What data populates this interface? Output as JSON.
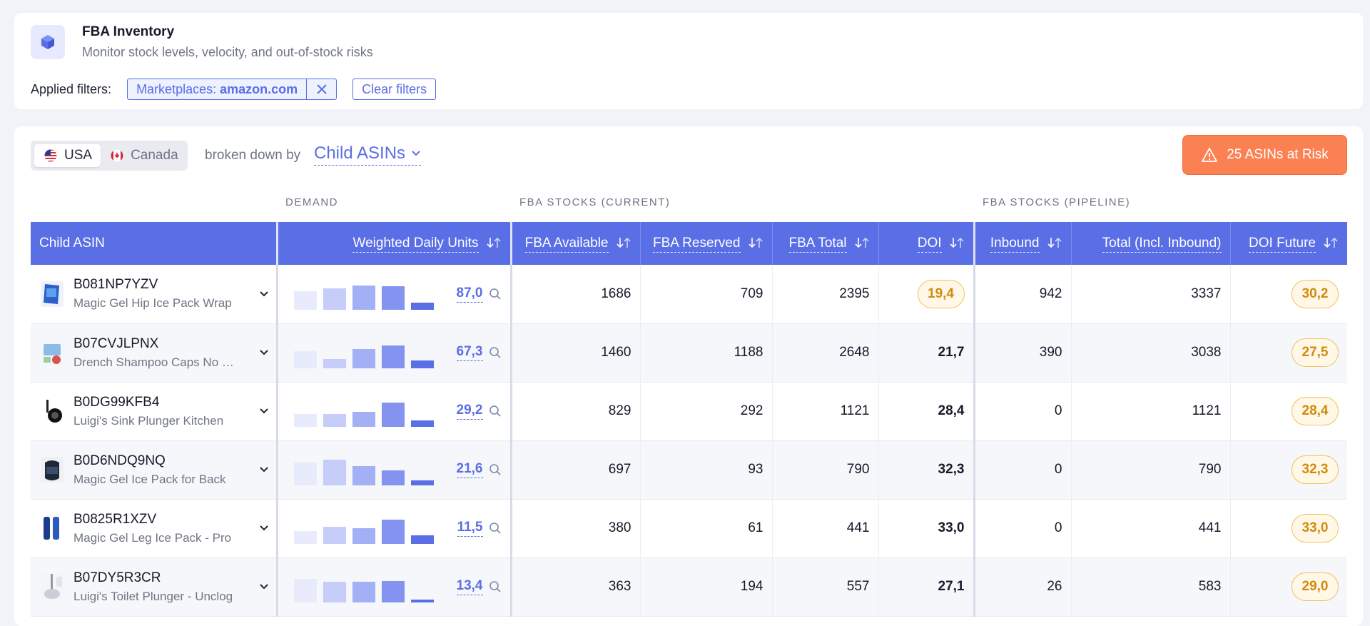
{
  "header": {
    "title": "FBA Inventory",
    "subtitle": "Monitor stock levels, velocity, and out-of-stock risks",
    "filters_label": "Applied filters:",
    "filter_chip": {
      "key": "Marketplaces:",
      "value": "amazon.com"
    },
    "clear_label": "Clear filters"
  },
  "toolbar": {
    "marketplaces": [
      {
        "label": "USA",
        "active": true
      },
      {
        "label": "Canada",
        "active": false
      }
    ],
    "broken_down_by": "broken down by",
    "dimension": "Child ASINs",
    "risk_button": "25 ASINs at Risk"
  },
  "groups": {
    "demand": "DEMAND",
    "current": "FBA STOCKS (CURRENT)",
    "pipeline": "FBA STOCKS (PIPELINE)"
  },
  "columns": {
    "child_asin": "Child ASIN",
    "weighted_daily_units": "Weighted Daily Units",
    "fba_available": "FBA Available",
    "fba_reserved": "FBA Reserved",
    "fba_total": "FBA Total",
    "doi": "DOI",
    "inbound": "Inbound",
    "total_incl_inbound": "Total (Incl. Inbound)",
    "doi_future": "DOI Future"
  },
  "colors": {
    "accent": "#5a6ee6",
    "risk": "#fb8153",
    "warning_pill_bg": "#fff8e7",
    "warning_pill_text": "#d38a0c"
  },
  "rows": [
    {
      "asin": "B081NP7YZV",
      "name": "Magic Gel Hip Ice Pack Wrap",
      "thumb": "hip-wrap",
      "wdu": "87,0",
      "trend": [
        0.6,
        0.68,
        0.78,
        0.75,
        0.22
      ],
      "fba_available": "1686",
      "fba_reserved": "709",
      "fba_total": "2395",
      "doi": "19,4",
      "doi_highlight": true,
      "inbound": "942",
      "total_incl_inbound": "3337",
      "doi_future": "30,2"
    },
    {
      "asin": "B07CVJLPNX",
      "name": "Drench Shampoo Caps No Rinse",
      "thumb": "shampoo-caps",
      "wdu": "67,3",
      "trend": [
        0.55,
        0.3,
        0.62,
        0.72,
        0.25
      ],
      "fba_available": "1460",
      "fba_reserved": "1188",
      "fba_total": "2648",
      "doi": "21,7",
      "doi_highlight": false,
      "inbound": "390",
      "total_incl_inbound": "3038",
      "doi_future": "27,5"
    },
    {
      "asin": "B0DG99KFB4",
      "name": "Luigi's Sink Plunger Kitchen",
      "thumb": "sink-plunger",
      "wdu": "29,2",
      "trend": [
        0.42,
        0.4,
        0.48,
        0.78,
        0.2
      ],
      "fba_available": "829",
      "fba_reserved": "292",
      "fba_total": "1121",
      "doi": "28,4",
      "doi_highlight": false,
      "inbound": "0",
      "total_incl_inbound": "1121",
      "doi_future": "28,4"
    },
    {
      "asin": "B0D6NDQ9NQ",
      "name": "Magic Gel Ice Pack for Back",
      "thumb": "back-pack",
      "wdu": "21,6",
      "trend": [
        0.72,
        0.82,
        0.62,
        0.48,
        0.15
      ],
      "fba_available": "697",
      "fba_reserved": "93",
      "fba_total": "790",
      "doi": "32,3",
      "doi_highlight": false,
      "inbound": "0",
      "total_incl_inbound": "790",
      "doi_future": "32,3"
    },
    {
      "asin": "B0825R1XZV",
      "name": "Magic Gel Leg Ice Pack - Pro",
      "thumb": "leg-pack",
      "wdu": "11,5",
      "trend": [
        0.4,
        0.55,
        0.5,
        0.78,
        0.28
      ],
      "fba_available": "380",
      "fba_reserved": "61",
      "fba_total": "441",
      "doi": "33,0",
      "doi_highlight": false,
      "inbound": "0",
      "total_incl_inbound": "441",
      "doi_future": "33,0"
    },
    {
      "asin": "B07DY5R3CR",
      "name": "Luigi's Toilet Plunger - Unclog",
      "thumb": "toilet-plunger",
      "wdu": "13,4",
      "trend": [
        0.75,
        0.65,
        0.65,
        0.68,
        0.1
      ],
      "fba_available": "363",
      "fba_reserved": "194",
      "fba_total": "557",
      "doi": "27,1",
      "doi_highlight": false,
      "inbound": "26",
      "total_incl_inbound": "583",
      "doi_future": "29,0"
    }
  ]
}
